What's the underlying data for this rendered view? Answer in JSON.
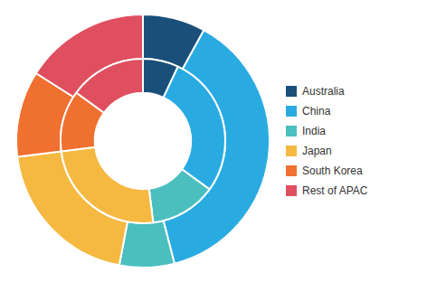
{
  "chart_data": {
    "type": "pie",
    "categories": [
      "Australia",
      "China",
      "India",
      "Japan",
      "South Korea",
      "Rest of APAC"
    ],
    "colors": [
      "#1a4f7a",
      "#29abe2",
      "#4bbfbf",
      "#f5b942",
      "#f07030",
      "#e04f5f"
    ],
    "series": [
      {
        "values": [
          8.0,
          38.0,
          7.0,
          20.0,
          11.0,
          16.0
        ]
      },
      {
        "values": [
          7.0,
          28.0,
          13.0,
          25.0,
          12.0,
          15.0
        ]
      }
    ],
    "legend": "right"
  }
}
